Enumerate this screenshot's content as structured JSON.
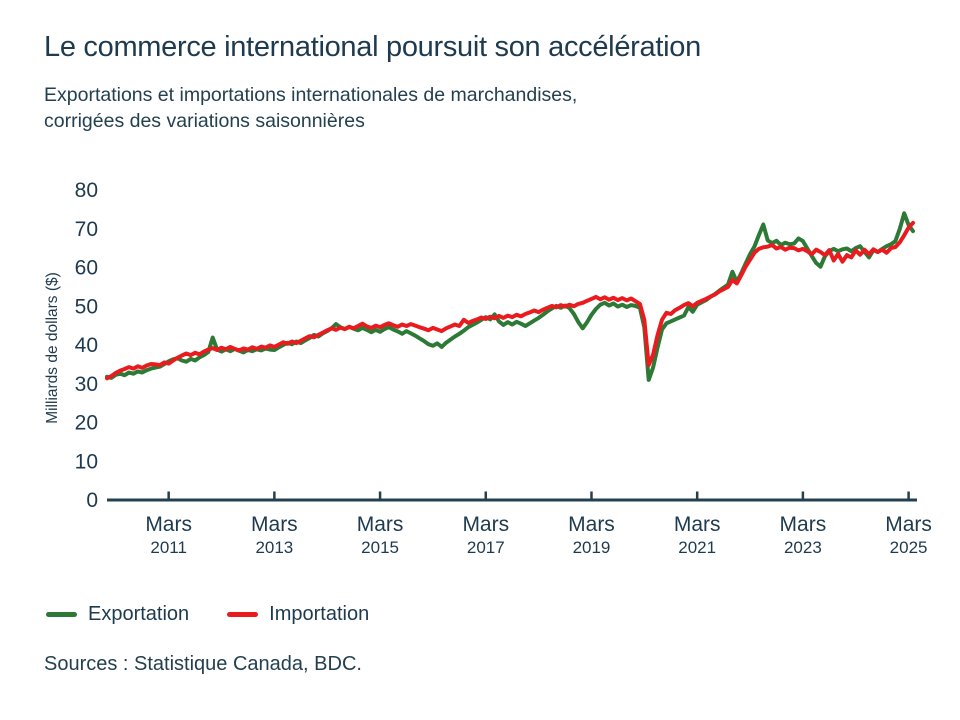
{
  "header": {
    "title": "Le commerce international poursuit son accélération",
    "subtitle_line1": "Exportations et importations internationales de marchandises,",
    "subtitle_line2": "corrigées des variations saisonnières"
  },
  "sources": "Sources : Statistique Canada, BDC.",
  "colors": {
    "text": "#1e3a4f",
    "axis": "#24404f",
    "export_green": "#2d7a36",
    "import_red": "#ea1b1e",
    "background": "#ffffff"
  },
  "chart_data": {
    "type": "line",
    "title": "Exportations et importations internationales de marchandises, corrigées des variations saisonnières",
    "xlabel": "",
    "ylabel": "Milliards de dollars ($)",
    "ylim": [
      0,
      80
    ],
    "y_ticks": [
      0,
      10,
      20,
      30,
      40,
      50,
      60,
      70,
      80
    ],
    "x_ticks": [
      {
        "month": "Mars",
        "year": "2011"
      },
      {
        "month": "Mars",
        "year": "2013"
      },
      {
        "month": "Mars",
        "year": "2015"
      },
      {
        "month": "Mars",
        "year": "2017"
      },
      {
        "month": "Mars",
        "year": "2019"
      },
      {
        "month": "Mars",
        "year": "2021"
      },
      {
        "month": "Mars",
        "year": "2023"
      },
      {
        "month": "Mars",
        "year": "2025"
      }
    ],
    "x_range": {
      "start": "2010-01",
      "end": "2025-04",
      "frequency": "monthly"
    },
    "grid": false,
    "legend_position": "bottom-left",
    "series": [
      {
        "name": "Exportation",
        "color": "#2d7a36",
        "values": [
          31.8,
          31.5,
          32.3,
          32.6,
          32.2,
          32.9,
          32.6,
          33.2,
          32.9,
          33.5,
          33.9,
          34.2,
          34.4,
          35.1,
          35.8,
          36.3,
          36.6,
          36.0,
          35.7,
          36.4,
          36.0,
          36.8,
          37.4,
          38.2,
          41.9,
          38.8,
          38.3,
          38.9,
          38.4,
          39.0,
          38.5,
          38.1,
          38.7,
          38.4,
          38.9,
          38.6,
          39.1,
          38.8,
          38.7,
          39.4,
          40.0,
          40.6,
          40.2,
          40.9,
          40.5,
          41.2,
          41.8,
          42.6,
          42.2,
          43.0,
          43.6,
          44.3,
          45.4,
          44.6,
          44.1,
          44.7,
          44.2,
          43.8,
          44.4,
          43.9,
          43.3,
          43.9,
          43.4,
          44.1,
          44.6,
          44.0,
          43.5,
          42.9,
          43.6,
          43.0,
          42.4,
          41.7,
          41.0,
          40.2,
          39.8,
          40.4,
          39.5,
          40.6,
          41.4,
          42.2,
          42.9,
          43.7,
          44.6,
          45.2,
          45.8,
          46.5,
          47.2,
          46.6,
          47.9,
          46.1,
          45.2,
          45.9,
          45.3,
          46.0,
          45.5,
          44.9,
          45.6,
          46.3,
          47.0,
          47.8,
          48.7,
          49.4,
          50.1,
          49.6,
          50.2,
          49.5,
          48.0,
          45.9,
          44.3,
          45.9,
          47.8,
          49.3,
          50.4,
          50.9,
          50.2,
          50.7,
          49.9,
          50.4,
          49.8,
          50.3,
          50.1,
          49.6,
          44.6,
          31.0,
          34.2,
          39.3,
          44.0,
          45.6,
          46.1,
          46.6,
          47.1,
          47.6,
          49.8,
          48.6,
          50.4,
          51.0,
          51.6,
          52.4,
          53.1,
          54.0,
          54.8,
          55.6,
          58.9,
          56.3,
          58.5,
          61.0,
          63.4,
          65.4,
          68.3,
          71.1,
          67.0,
          66.3,
          66.9,
          65.8,
          66.4,
          66.0,
          66.2,
          67.5,
          66.8,
          64.9,
          63.0,
          61.2,
          60.2,
          62.9,
          64.2,
          64.8,
          64.2,
          64.7,
          64.9,
          64.2,
          65.0,
          65.5,
          64.0,
          62.6,
          64.5,
          64.0,
          64.8,
          65.5,
          66.0,
          66.8,
          70.0,
          74.0,
          71.0,
          69.4
        ]
      },
      {
        "name": "Importation",
        "color": "#ea1b1e",
        "values": [
          31.4,
          32.0,
          32.8,
          33.4,
          33.8,
          34.3,
          33.9,
          34.5,
          34.1,
          34.7,
          35.1,
          35.0,
          34.8,
          35.5,
          35.2,
          36.0,
          36.7,
          37.3,
          37.8,
          37.4,
          38.0,
          37.6,
          38.3,
          38.8,
          39.2,
          38.7,
          39.3,
          38.9,
          39.5,
          39.0,
          38.6,
          39.1,
          38.8,
          39.4,
          39.0,
          39.6,
          39.3,
          39.9,
          39.5,
          40.1,
          40.7,
          40.3,
          40.9,
          40.5,
          41.1,
          41.7,
          42.3,
          42.0,
          42.6,
          43.2,
          43.8,
          44.3,
          43.9,
          44.5,
          44.1,
          44.7,
          44.3,
          44.9,
          45.5,
          44.8,
          44.4,
          45.0,
          44.6,
          45.2,
          45.6,
          45.1,
          44.7,
          45.3,
          44.9,
          45.4,
          45.0,
          44.6,
          44.2,
          43.8,
          44.4,
          44.0,
          43.6,
          44.3,
          44.8,
          45.3,
          44.9,
          46.5,
          45.7,
          46.2,
          46.6,
          47.1,
          46.7,
          47.3,
          46.9,
          47.5,
          47.0,
          47.6,
          47.2,
          47.8,
          47.4,
          48.0,
          48.4,
          48.9,
          48.5,
          49.1,
          49.6,
          50.1,
          49.7,
          50.3,
          49.9,
          50.4,
          50.0,
          50.6,
          50.9,
          51.4,
          51.9,
          52.4,
          51.8,
          52.3,
          51.7,
          52.2,
          51.6,
          52.1,
          51.5,
          52.0,
          51.3,
          50.6,
          46.5,
          34.8,
          37.5,
          42.5,
          46.5,
          48.3,
          48.0,
          49.0,
          49.6,
          50.3,
          50.8,
          50.0,
          50.9,
          51.4,
          51.9,
          52.5,
          53.0,
          53.8,
          54.4,
          55.0,
          56.8,
          55.9,
          58.0,
          60.2,
          62.0,
          63.8,
          64.8,
          65.2,
          65.4,
          65.8,
          64.9,
          65.3,
          64.6,
          65.1,
          65.0,
          64.4,
          64.8,
          64.2,
          63.4,
          64.6,
          64.0,
          63.2,
          64.5,
          61.8,
          63.5,
          61.5,
          63.2,
          62.6,
          64.4,
          63.3,
          64.6,
          63.4,
          64.7,
          64.0,
          64.6,
          63.8,
          65.0,
          65.3,
          66.5,
          68.3,
          70.3,
          71.5
        ]
      }
    ]
  }
}
